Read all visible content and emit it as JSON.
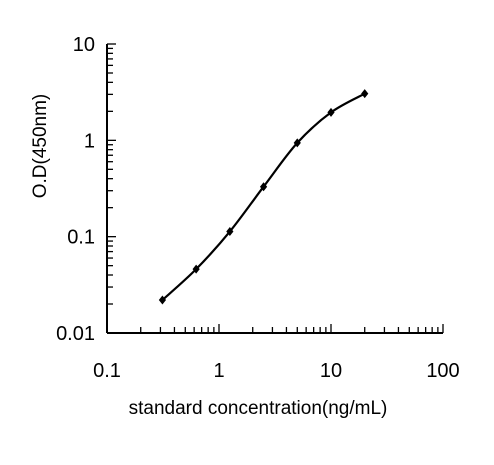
{
  "chart_data": {
    "type": "line",
    "title": "",
    "xlabel": "standard concentration(ng/mL)",
    "ylabel": "O.D(450nm)",
    "x_scale": "log",
    "y_scale": "log",
    "xlim": [
      0.1,
      100
    ],
    "ylim": [
      0.01,
      10
    ],
    "x_tick_labels": [
      "0.1",
      "1",
      "10",
      "100"
    ],
    "y_tick_labels": [
      "0.01",
      "0.1",
      "1",
      "10"
    ],
    "grid": false,
    "legend": "none",
    "series": [
      {
        "x": [
          0.3125,
          0.625,
          1.25,
          2.5,
          5,
          10,
          20
        ],
        "y": [
          0.022,
          0.046,
          0.113,
          0.33,
          0.94,
          1.95,
          3.05
        ],
        "marker": "diamond",
        "color": "#000000"
      }
    ]
  }
}
